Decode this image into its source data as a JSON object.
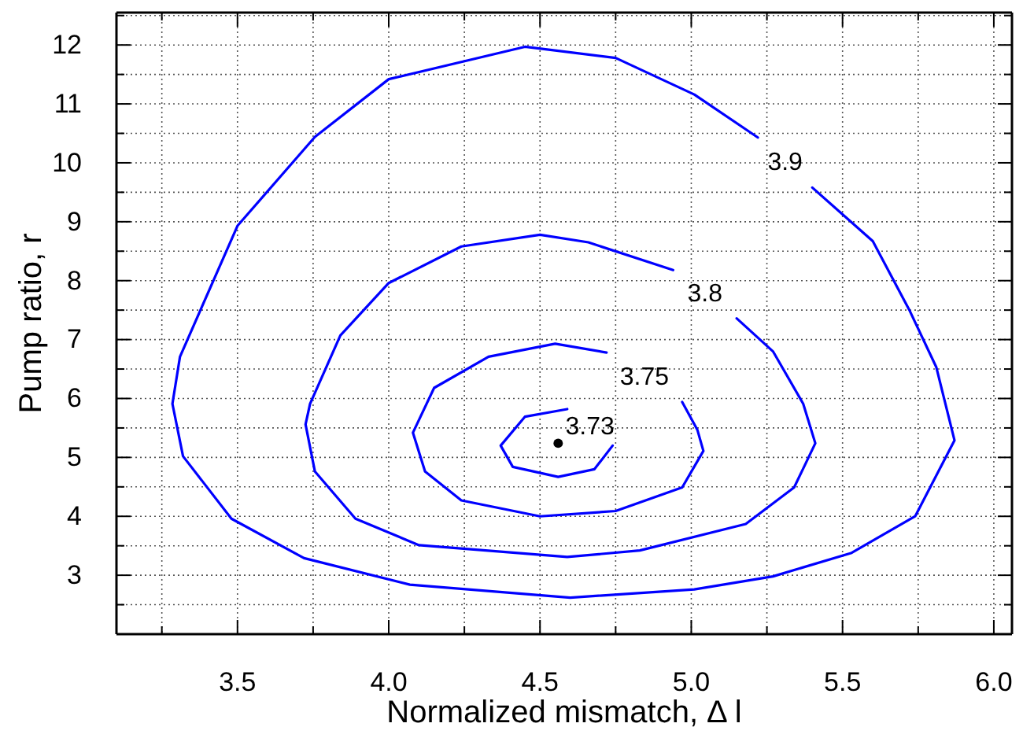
{
  "chart_data": {
    "type": "line",
    "xlabel": "Normalized mismatch, Δ l",
    "ylabel": "Pump ratio, r",
    "xlim": [
      3.1,
      6.06
    ],
    "ylim": [
      2.0,
      12.55
    ],
    "xticks": [
      {
        "value": 3.25,
        "label": null
      },
      3.5,
      {
        "value": 3.75,
        "label": null
      },
      {
        "value": 4.0,
        "label": "4.0"
      },
      {
        "value": 4.25,
        "label": null
      },
      4.5,
      {
        "value": 4.75,
        "label": null
      },
      {
        "value": 5.0,
        "label": "5.0"
      },
      {
        "value": 5.25,
        "label": null
      },
      5.5,
      {
        "value": 5.75,
        "label": null
      },
      {
        "value": 6.0,
        "label": "6.0"
      }
    ],
    "yticks": [
      {
        "value": 2.5,
        "label": null
      },
      3,
      {
        "value": 3.5,
        "label": null
      },
      4,
      {
        "value": 4.5,
        "label": null
      },
      5,
      {
        "value": 5.5,
        "label": null
      },
      6,
      {
        "value": 6.5,
        "label": null
      },
      7,
      {
        "value": 7.5,
        "label": null
      },
      8,
      {
        "value": 8.5,
        "label": null
      },
      9,
      {
        "value": 9.5,
        "label": null
      },
      10,
      {
        "value": 10.5,
        "label": null
      },
      11,
      {
        "value": 11.5,
        "label": null
      },
      12,
      {
        "value": 12.5,
        "label": null
      }
    ],
    "grid": true,
    "marker": "none",
    "line_style": "solid",
    "series": [
      {
        "name": "3.9",
        "color": "#0000ff",
        "x": [
          5.22,
          5.01,
          4.75,
          4.45,
          4.0,
          3.756,
          3.5,
          3.31,
          3.285,
          3.32,
          3.48,
          3.72,
          4.07,
          4.6,
          5.01,
          5.27,
          5.53,
          5.74,
          5.87,
          5.81,
          5.72,
          5.6,
          5.4
        ],
        "values": [
          10.43,
          11.16,
          11.78,
          11.97,
          11.42,
          10.44,
          8.93,
          6.71,
          5.91,
          5.02,
          3.96,
          3.29,
          2.84,
          2.62,
          2.76,
          2.98,
          3.38,
          4.0,
          5.29,
          6.53,
          7.51,
          8.67,
          9.58
        ]
      },
      {
        "name": "3.8",
        "color": "#0000ff",
        "x": [
          4.94,
          4.66,
          4.5,
          4.24,
          4.0,
          3.84,
          3.74,
          3.725,
          3.756,
          3.89,
          4.1,
          4.59,
          4.83,
          5.18,
          5.34,
          5.41,
          5.37,
          5.27,
          5.15
        ],
        "values": [
          8.18,
          8.65,
          8.78,
          8.58,
          7.96,
          7.07,
          5.91,
          5.56,
          4.76,
          3.96,
          3.51,
          3.31,
          3.42,
          3.87,
          4.49,
          5.24,
          5.91,
          6.8,
          7.36
        ]
      },
      {
        "name": "3.75",
        "color": "#0000ff",
        "x": [
          4.72,
          4.55,
          4.33,
          4.15,
          4.08,
          4.12,
          4.24,
          4.5,
          4.75,
          4.97,
          5.04,
          5.02,
          4.97
        ],
        "values": [
          6.78,
          6.93,
          6.71,
          6.18,
          5.42,
          4.76,
          4.27,
          4.0,
          4.09,
          4.49,
          5.11,
          5.47,
          5.94
        ]
      },
      {
        "name": "3.73",
        "color": "#0000ff",
        "x": [
          4.59,
          4.45,
          4.37,
          4.41,
          4.56,
          4.68,
          4.74
        ],
        "values": [
          5.82,
          5.69,
          5.2,
          4.84,
          4.67,
          4.8,
          5.2
        ]
      },
      {
        "type": "scatter",
        "marker": "circle",
        "color": "#000000",
        "x": [
          4.56
        ],
        "values": [
          5.24
        ]
      }
    ]
  }
}
